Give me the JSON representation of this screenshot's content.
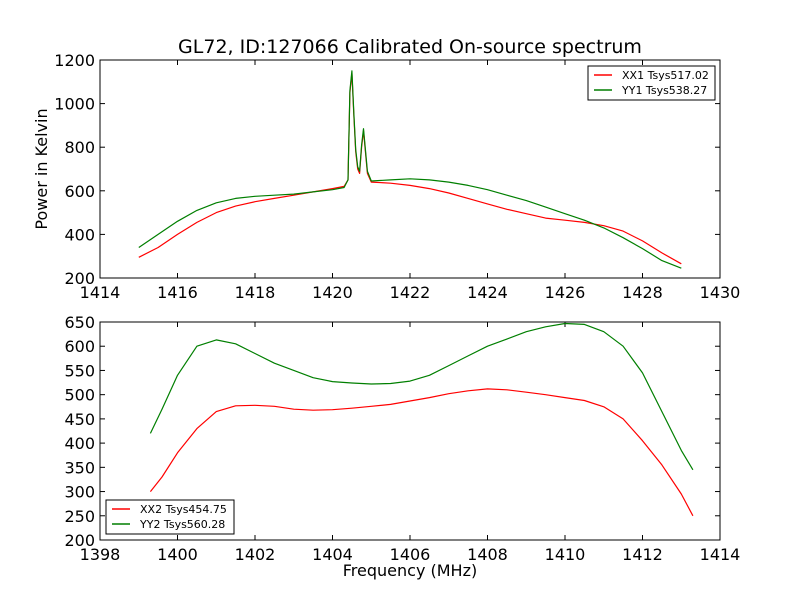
{
  "chart_data": [
    {
      "type": "line",
      "title": "GL72, ID:127066 Calibrated On-source spectrum",
      "xlabel": "",
      "ylabel": "Power in Kelvin",
      "xlim": [
        1414,
        1430
      ],
      "ylim": [
        200,
        1200
      ],
      "xticks": [
        "1414",
        "1416",
        "1418",
        "1420",
        "1422",
        "1424",
        "1426",
        "1428",
        "1430"
      ],
      "yticks": [
        "200",
        "400",
        "600",
        "800",
        "1000",
        "1200"
      ],
      "legend_position": "top-right",
      "series": [
        {
          "name": "XX1 Tsys517.02",
          "color": "#ff0000",
          "points": [
            [
              1415,
              295
            ],
            [
              1415.5,
              340
            ],
            [
              1416,
              400
            ],
            [
              1416.5,
              455
            ],
            [
              1417,
              500
            ],
            [
              1417.5,
              530
            ],
            [
              1418,
              550
            ],
            [
              1418.5,
              565
            ],
            [
              1419,
              580
            ],
            [
              1419.5,
              595
            ],
            [
              1420,
              610
            ],
            [
              1420.3,
              620
            ],
            [
              1420.4,
              650
            ],
            [
              1420.45,
              1050
            ],
            [
              1420.5,
              1140
            ],
            [
              1420.55,
              950
            ],
            [
              1420.6,
              780
            ],
            [
              1420.65,
              700
            ],
            [
              1420.7,
              680
            ],
            [
              1420.75,
              800
            ],
            [
              1420.8,
              875
            ],
            [
              1420.85,
              780
            ],
            [
              1420.9,
              680
            ],
            [
              1421,
              640
            ],
            [
              1421.5,
              635
            ],
            [
              1422,
              625
            ],
            [
              1422.5,
              610
            ],
            [
              1423,
              590
            ],
            [
              1423.5,
              565
            ],
            [
              1424,
              540
            ],
            [
              1424.5,
              515
            ],
            [
              1425,
              495
            ],
            [
              1425.5,
              475
            ],
            [
              1426,
              465
            ],
            [
              1426.5,
              455
            ],
            [
              1427,
              440
            ],
            [
              1427.5,
              415
            ],
            [
              1428,
              370
            ],
            [
              1428.5,
              315
            ],
            [
              1429,
              265
            ]
          ]
        },
        {
          "name": "YY1 Tsys538.27",
          "color": "#007f00",
          "points": [
            [
              1415,
              340
            ],
            [
              1415.5,
              400
            ],
            [
              1416,
              460
            ],
            [
              1416.5,
              510
            ],
            [
              1417,
              545
            ],
            [
              1417.5,
              565
            ],
            [
              1418,
              575
            ],
            [
              1418.5,
              580
            ],
            [
              1419,
              585
            ],
            [
              1419.5,
              595
            ],
            [
              1420,
              605
            ],
            [
              1420.3,
              615
            ],
            [
              1420.4,
              650
            ],
            [
              1420.45,
              1060
            ],
            [
              1420.5,
              1150
            ],
            [
              1420.55,
              960
            ],
            [
              1420.6,
              790
            ],
            [
              1420.65,
              710
            ],
            [
              1420.7,
              690
            ],
            [
              1420.75,
              810
            ],
            [
              1420.8,
              885
            ],
            [
              1420.85,
              790
            ],
            [
              1420.9,
              690
            ],
            [
              1421,
              645
            ],
            [
              1421.5,
              650
            ],
            [
              1422,
              655
            ],
            [
              1422.5,
              650
            ],
            [
              1423,
              640
            ],
            [
              1423.5,
              625
            ],
            [
              1424,
              605
            ],
            [
              1424.5,
              580
            ],
            [
              1425,
              555
            ],
            [
              1425.5,
              525
            ],
            [
              1426,
              495
            ],
            [
              1426.5,
              465
            ],
            [
              1427,
              430
            ],
            [
              1427.5,
              385
            ],
            [
              1428,
              335
            ],
            [
              1428.5,
              280
            ],
            [
              1429,
              245
            ]
          ]
        }
      ]
    },
    {
      "type": "line",
      "title": "",
      "xlabel": "Frequency (MHz)",
      "ylabel": "",
      "xlim": [
        1398,
        1414
      ],
      "ylim": [
        200,
        650
      ],
      "xticks": [
        "1398",
        "1400",
        "1402",
        "1404",
        "1406",
        "1408",
        "1410",
        "1412",
        "1414"
      ],
      "yticks": [
        "200",
        "250",
        "300",
        "350",
        "400",
        "450",
        "500",
        "550",
        "600",
        "650"
      ],
      "legend_position": "bottom-left",
      "series": [
        {
          "name": "XX2 Tsys454.75",
          "color": "#ff0000",
          "points": [
            [
              1399.3,
              300
            ],
            [
              1399.6,
              330
            ],
            [
              1400,
              380
            ],
            [
              1400.5,
              430
            ],
            [
              1401,
              465
            ],
            [
              1401.5,
              477
            ],
            [
              1402,
              478
            ],
            [
              1402.5,
              476
            ],
            [
              1403,
              470
            ],
            [
              1403.5,
              468
            ],
            [
              1404,
              469
            ],
            [
              1404.5,
              472
            ],
            [
              1405,
              476
            ],
            [
              1405.5,
              480
            ],
            [
              1406,
              487
            ],
            [
              1406.5,
              494
            ],
            [
              1407,
              502
            ],
            [
              1407.5,
              508
            ],
            [
              1408,
              512
            ],
            [
              1408.5,
              510
            ],
            [
              1409,
              505
            ],
            [
              1409.5,
              500
            ],
            [
              1410,
              494
            ],
            [
              1410.5,
              488
            ],
            [
              1411,
              475
            ],
            [
              1411.5,
              450
            ],
            [
              1412,
              405
            ],
            [
              1412.5,
              355
            ],
            [
              1413,
              295
            ],
            [
              1413.3,
              250
            ]
          ]
        },
        {
          "name": "YY2 Tsys560.28",
          "color": "#007f00",
          "points": [
            [
              1399.3,
              420
            ],
            [
              1399.6,
              470
            ],
            [
              1400,
              540
            ],
            [
              1400.5,
              600
            ],
            [
              1401,
              613
            ],
            [
              1401.5,
              605
            ],
            [
              1402,
              585
            ],
            [
              1402.5,
              565
            ],
            [
              1403,
              550
            ],
            [
              1403.5,
              535
            ],
            [
              1404,
              527
            ],
            [
              1404.5,
              524
            ],
            [
              1405,
              522
            ],
            [
              1405.5,
              523
            ],
            [
              1406,
              528
            ],
            [
              1406.5,
              540
            ],
            [
              1407,
              560
            ],
            [
              1407.5,
              580
            ],
            [
              1408,
              600
            ],
            [
              1408.5,
              615
            ],
            [
              1409,
              630
            ],
            [
              1409.5,
              640
            ],
            [
              1410,
              647
            ],
            [
              1410.5,
              645
            ],
            [
              1411,
              630
            ],
            [
              1411.5,
              600
            ],
            [
              1412,
              545
            ],
            [
              1412.5,
              465
            ],
            [
              1413,
              385
            ],
            [
              1413.3,
              345
            ]
          ]
        }
      ]
    }
  ]
}
